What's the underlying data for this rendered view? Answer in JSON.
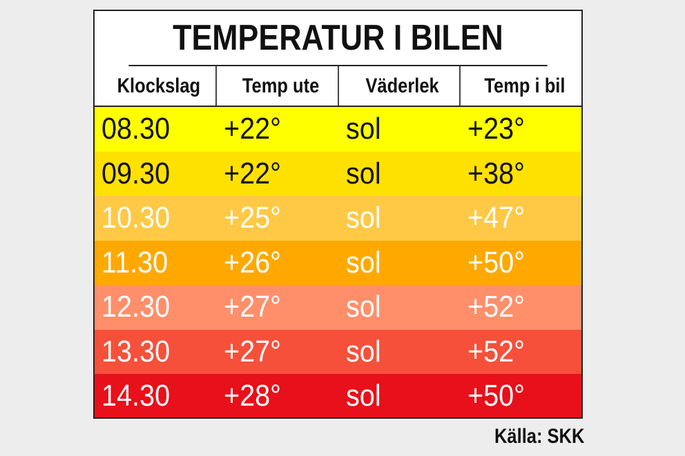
{
  "title": "TEMPERATUR I BILEN",
  "source": "Källa: SKK",
  "chart_data": {
    "type": "table",
    "title": "TEMPERATUR I BILEN",
    "columns": [
      "Klockslag",
      "Temp ute",
      "Väderlek",
      "Temp i bil"
    ],
    "rows": [
      {
        "cells": [
          "08.30",
          "+22°",
          "sol",
          "+23°"
        ],
        "bg": "#ffff00",
        "fg": "#111111"
      },
      {
        "cells": [
          "09.30",
          "+22°",
          "sol",
          "+38°"
        ],
        "bg": "#ffe100",
        "fg": "#111111"
      },
      {
        "cells": [
          "10.30",
          "+25°",
          "sol",
          "+47°"
        ],
        "bg": "#ffc945",
        "fg": "#ffffff"
      },
      {
        "cells": [
          "11.30",
          "+26°",
          "sol",
          "+50°"
        ],
        "bg": "#ffa900",
        "fg": "#ffffff"
      },
      {
        "cells": [
          "12.30",
          "+27°",
          "sol",
          "+52°"
        ],
        "bg": "#ff8f6b",
        "fg": "#ffffff"
      },
      {
        "cells": [
          "13.30",
          "+27°",
          "sol",
          "+52°"
        ],
        "bg": "#f6503a",
        "fg": "#ffffff"
      },
      {
        "cells": [
          "14.30",
          "+28°",
          "sol",
          "+50°"
        ],
        "bg": "#e8101a",
        "fg": "#ffffff"
      }
    ],
    "source": "Källa: SKK"
  }
}
